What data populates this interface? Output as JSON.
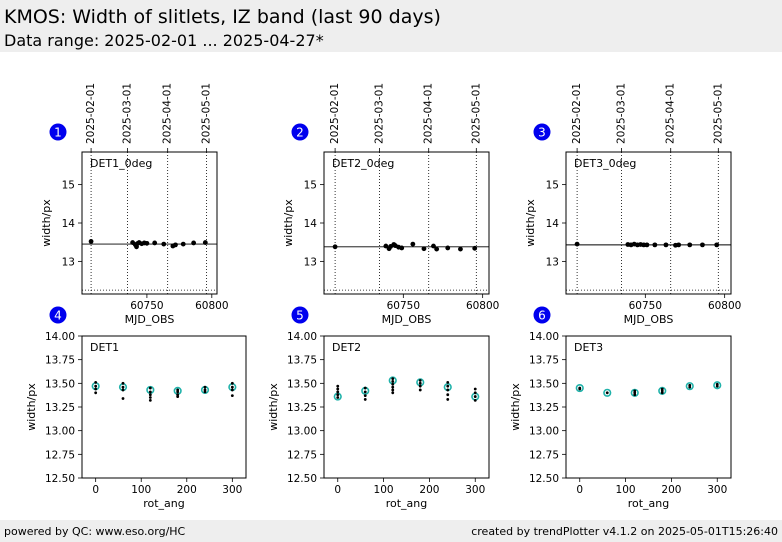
{
  "header": {
    "title": "KMOS: Width of slitlets, IZ band (last 90 days)",
    "subtitle": "Data range: 2025-02-01 ... 2025-04-27*"
  },
  "footer": {
    "left": "powered by QC: www.eso.org/HC",
    "right": "created by trendPlotter v4.1.2 on 2025-05-01T15:26:40"
  },
  "colors": {
    "marker": "#000000",
    "average_marker": "#20b2aa",
    "badge": "#0000ee",
    "badge_text": "#ffffff"
  },
  "chart_data": [
    {
      "type": "scatter",
      "badge": "1",
      "panel_label": "DET1_0deg",
      "xlabel": "MJD_OBS",
      "ylabel": "width/px",
      "xlim": [
        60700,
        60804
      ],
      "ylim": [
        12.15,
        15.85
      ],
      "xticks": [
        60750,
        60800
      ],
      "yticks": [
        13,
        14,
        15
      ],
      "date_ticks": [
        {
          "mjd": 60707,
          "label": "2025-02-01"
        },
        {
          "mjd": 60735,
          "label": "2025-03-01"
        },
        {
          "mjd": 60766,
          "label": "2025-04-01"
        },
        {
          "mjd": 60796,
          "label": "2025-05-01"
        }
      ],
      "reference_line": 13.45,
      "lower_line": 12.25,
      "points": [
        {
          "x": 60707,
          "y": 13.52
        },
        {
          "x": 60739,
          "y": 13.49
        },
        {
          "x": 60741,
          "y": 13.44
        },
        {
          "x": 60742,
          "y": 13.38
        },
        {
          "x": 60743,
          "y": 13.47
        },
        {
          "x": 60744,
          "y": 13.49
        },
        {
          "x": 60746,
          "y": 13.46
        },
        {
          "x": 60748,
          "y": 13.48
        },
        {
          "x": 60750,
          "y": 13.47
        },
        {
          "x": 60756,
          "y": 13.48
        },
        {
          "x": 60763,
          "y": 13.45
        },
        {
          "x": 60770,
          "y": 13.4
        },
        {
          "x": 60772,
          "y": 13.43
        },
        {
          "x": 60778,
          "y": 13.45
        },
        {
          "x": 60786,
          "y": 13.48
        },
        {
          "x": 60795,
          "y": 13.49
        }
      ]
    },
    {
      "type": "scatter",
      "badge": "2",
      "panel_label": "DET2_0deg",
      "xlabel": "MJD_OBS",
      "ylabel": "width/px",
      "xlim": [
        60700,
        60804
      ],
      "ylim": [
        12.15,
        15.85
      ],
      "xticks": [
        60750,
        60800
      ],
      "yticks": [
        13,
        14,
        15
      ],
      "date_ticks": [
        {
          "mjd": 60707,
          "label": "2025-02-01"
        },
        {
          "mjd": 60735,
          "label": "2025-03-01"
        },
        {
          "mjd": 60766,
          "label": "2025-04-01"
        },
        {
          "mjd": 60796,
          "label": "2025-05-01"
        }
      ],
      "reference_line": 13.38,
      "lower_line": 12.25,
      "points": [
        {
          "x": 60707,
          "y": 13.38
        },
        {
          "x": 60739,
          "y": 13.4
        },
        {
          "x": 60741,
          "y": 13.33
        },
        {
          "x": 60742,
          "y": 13.39
        },
        {
          "x": 60744,
          "y": 13.44
        },
        {
          "x": 60745,
          "y": 13.41
        },
        {
          "x": 60747,
          "y": 13.37
        },
        {
          "x": 60749,
          "y": 13.35
        },
        {
          "x": 60756,
          "y": 13.45
        },
        {
          "x": 60763,
          "y": 13.33
        },
        {
          "x": 60769,
          "y": 13.4
        },
        {
          "x": 60771,
          "y": 13.32
        },
        {
          "x": 60778,
          "y": 13.35
        },
        {
          "x": 60786,
          "y": 13.32
        },
        {
          "x": 60795,
          "y": 13.34
        }
      ]
    },
    {
      "type": "scatter",
      "badge": "3",
      "panel_label": "DET3_0deg",
      "xlabel": "MJD_OBS",
      "ylabel": "width/px",
      "xlim": [
        60700,
        60804
      ],
      "ylim": [
        12.15,
        15.85
      ],
      "xticks": [
        60750,
        60800
      ],
      "yticks": [
        13,
        14,
        15
      ],
      "date_ticks": [
        {
          "mjd": 60707,
          "label": "2025-02-01"
        },
        {
          "mjd": 60735,
          "label": "2025-03-01"
        },
        {
          "mjd": 60766,
          "label": "2025-04-01"
        },
        {
          "mjd": 60796,
          "label": "2025-05-01"
        }
      ],
      "reference_line": 13.43,
      "lower_line": 12.25,
      "points": [
        {
          "x": 60707,
          "y": 13.45
        },
        {
          "x": 60739,
          "y": 13.44
        },
        {
          "x": 60741,
          "y": 13.43
        },
        {
          "x": 60743,
          "y": 13.45
        },
        {
          "x": 60745,
          "y": 13.43
        },
        {
          "x": 60747,
          "y": 13.44
        },
        {
          "x": 60749,
          "y": 13.43
        },
        {
          "x": 60751,
          "y": 13.43
        },
        {
          "x": 60756,
          "y": 13.43
        },
        {
          "x": 60763,
          "y": 13.43
        },
        {
          "x": 60769,
          "y": 13.42
        },
        {
          "x": 60771,
          "y": 13.43
        },
        {
          "x": 60778,
          "y": 13.43
        },
        {
          "x": 60786,
          "y": 13.43
        },
        {
          "x": 60795,
          "y": 13.43
        }
      ]
    },
    {
      "type": "scatter",
      "badge": "4",
      "panel_label": "DET1",
      "xlabel": "rot_ang",
      "ylabel": "width/px",
      "xlim": [
        -30,
        330
      ],
      "ylim": [
        12.5,
        14.0
      ],
      "xticks": [
        0,
        100,
        200,
        300
      ],
      "yticks": [
        12.5,
        12.75,
        13.0,
        13.25,
        13.5,
        13.75,
        14.0
      ],
      "averages": [
        {
          "x": 0,
          "y": 13.47
        },
        {
          "x": 60,
          "y": 13.46
        },
        {
          "x": 120,
          "y": 13.43
        },
        {
          "x": 180,
          "y": 13.42
        },
        {
          "x": 240,
          "y": 13.43
        },
        {
          "x": 300,
          "y": 13.46
        }
      ],
      "points": [
        {
          "x": 0,
          "y": 13.51
        },
        {
          "x": 0,
          "y": 13.47
        },
        {
          "x": 0,
          "y": 13.44
        },
        {
          "x": 0,
          "y": 13.4
        },
        {
          "x": 60,
          "y": 13.5
        },
        {
          "x": 60,
          "y": 13.46
        },
        {
          "x": 60,
          "y": 13.43
        },
        {
          "x": 60,
          "y": 13.34
        },
        {
          "x": 120,
          "y": 13.45
        },
        {
          "x": 120,
          "y": 13.41
        },
        {
          "x": 120,
          "y": 13.38
        },
        {
          "x": 120,
          "y": 13.35
        },
        {
          "x": 120,
          "y": 13.32
        },
        {
          "x": 180,
          "y": 13.43
        },
        {
          "x": 180,
          "y": 13.41
        },
        {
          "x": 180,
          "y": 13.38
        },
        {
          "x": 180,
          "y": 13.36
        },
        {
          "x": 240,
          "y": 13.46
        },
        {
          "x": 240,
          "y": 13.43
        },
        {
          "x": 240,
          "y": 13.41
        },
        {
          "x": 300,
          "y": 13.5
        },
        {
          "x": 300,
          "y": 13.46
        },
        {
          "x": 300,
          "y": 13.43
        },
        {
          "x": 300,
          "y": 13.37
        }
      ]
    },
    {
      "type": "scatter",
      "badge": "5",
      "panel_label": "DET2",
      "xlabel": "rot_ang",
      "ylabel": "width/px",
      "xlim": [
        -30,
        330
      ],
      "ylim": [
        12.5,
        14.0
      ],
      "xticks": [
        0,
        100,
        200,
        300
      ],
      "yticks": [
        12.5,
        12.75,
        13.0,
        13.25,
        13.5,
        13.75,
        14.0
      ],
      "averages": [
        {
          "x": 0,
          "y": 13.36
        },
        {
          "x": 60,
          "y": 13.42
        },
        {
          "x": 120,
          "y": 13.53
        },
        {
          "x": 180,
          "y": 13.51
        },
        {
          "x": 240,
          "y": 13.46
        },
        {
          "x": 300,
          "y": 13.36
        }
      ],
      "points": [
        {
          "x": 0,
          "y": 13.47
        },
        {
          "x": 0,
          "y": 13.44
        },
        {
          "x": 0,
          "y": 13.41
        },
        {
          "x": 0,
          "y": 13.38
        },
        {
          "x": 0,
          "y": 13.35
        },
        {
          "x": 60,
          "y": 13.45
        },
        {
          "x": 60,
          "y": 13.41
        },
        {
          "x": 60,
          "y": 13.37
        },
        {
          "x": 60,
          "y": 13.33
        },
        {
          "x": 120,
          "y": 13.55
        },
        {
          "x": 120,
          "y": 13.52
        },
        {
          "x": 120,
          "y": 13.49
        },
        {
          "x": 120,
          "y": 13.46
        },
        {
          "x": 120,
          "y": 13.43
        },
        {
          "x": 120,
          "y": 13.4
        },
        {
          "x": 180,
          "y": 13.53
        },
        {
          "x": 180,
          "y": 13.5
        },
        {
          "x": 180,
          "y": 13.47
        },
        {
          "x": 180,
          "y": 13.43
        },
        {
          "x": 240,
          "y": 13.51
        },
        {
          "x": 240,
          "y": 13.47
        },
        {
          "x": 240,
          "y": 13.43
        },
        {
          "x": 240,
          "y": 13.38
        },
        {
          "x": 240,
          "y": 13.33
        },
        {
          "x": 300,
          "y": 13.44
        },
        {
          "x": 300,
          "y": 13.4
        },
        {
          "x": 300,
          "y": 13.36
        },
        {
          "x": 300,
          "y": 13.32
        }
      ]
    },
    {
      "type": "scatter",
      "badge": "6",
      "panel_label": "DET3",
      "xlabel": "rot_ang",
      "ylabel": "width/px",
      "xlim": [
        -30,
        330
      ],
      "ylim": [
        12.5,
        14.0
      ],
      "xticks": [
        0,
        100,
        200,
        300
      ],
      "yticks": [
        12.5,
        12.75,
        13.0,
        13.25,
        13.5,
        13.75,
        14.0
      ],
      "averages": [
        {
          "x": 0,
          "y": 13.45
        },
        {
          "x": 60,
          "y": 13.4
        },
        {
          "x": 120,
          "y": 13.4
        },
        {
          "x": 180,
          "y": 13.42
        },
        {
          "x": 240,
          "y": 13.47
        },
        {
          "x": 300,
          "y": 13.48
        }
      ],
      "points": [
        {
          "x": 0,
          "y": 13.45
        },
        {
          "x": 0,
          "y": 13.44
        },
        {
          "x": 60,
          "y": 13.4
        },
        {
          "x": 120,
          "y": 13.42
        },
        {
          "x": 120,
          "y": 13.4
        },
        {
          "x": 120,
          "y": 13.38
        },
        {
          "x": 180,
          "y": 13.44
        },
        {
          "x": 180,
          "y": 13.42
        },
        {
          "x": 180,
          "y": 13.4
        },
        {
          "x": 240,
          "y": 13.48
        },
        {
          "x": 240,
          "y": 13.46
        },
        {
          "x": 300,
          "y": 13.49
        },
        {
          "x": 300,
          "y": 13.47
        }
      ]
    }
  ]
}
